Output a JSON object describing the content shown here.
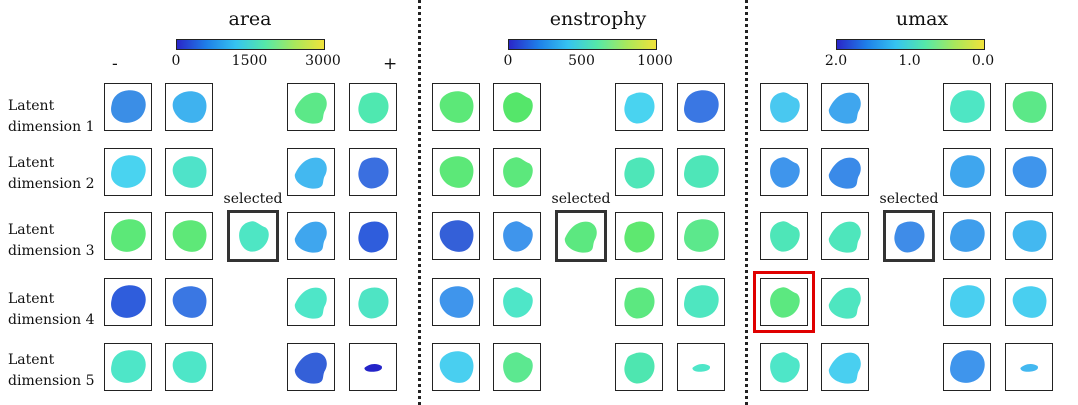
{
  "rows": [
    "Latent\ndimension 1",
    "Latent\ndimension 2",
    "Latent\ndimension 3",
    "Latent\ndimension 4",
    "Latent\ndimension 5"
  ],
  "minus": "-",
  "plus": "+",
  "selected_label": "selected",
  "panels": [
    {
      "title": "area",
      "ticks": [
        "0",
        "1500",
        "3000"
      ],
      "gradient": [
        "#2a26c9",
        "#1e7fe8",
        "#35c3f0",
        "#55e8a9",
        "#a8e85c",
        "#f0e23a"
      ],
      "blobs": [
        [
          "#3b8ee6",
          "#3fb2ef",
          null,
          "#5ce888",
          "#4fe8b0"
        ],
        [
          "#49d3f0",
          "#4fe3c9",
          null,
          "#43b8f0",
          "#3a6fe0"
        ],
        [
          "#5ce878",
          "#5ee878",
          "#4ee6c4",
          "#3fa6ee",
          "#2f5ddc"
        ],
        [
          "#2f5ddc",
          "#3a77e3",
          null,
          "#4ee6c8",
          "#4ee4c4"
        ],
        [
          "#4ee6c8",
          "#4ee6c8",
          null,
          "#3460d8",
          "#2424c8"
        ]
      ]
    },
    {
      "title": "enstrophy",
      "ticks": [
        "0",
        "500",
        "1000"
      ],
      "gradient": [
        "#2a26c9",
        "#1e7fe8",
        "#35c3f0",
        "#55e8a9",
        "#a8e85c",
        "#f0e23a"
      ],
      "blobs": [
        [
          "#5ce878",
          "#55e66a",
          null,
          "#49d3f0",
          "#3a77e3"
        ],
        [
          "#5ce878",
          "#5ce87c",
          null,
          "#4ee6b8",
          "#4ee6b8"
        ],
        [
          "#3460d8",
          "#3f95ec",
          "#5ce880",
          "#5ee870",
          "#5ce88c"
        ],
        [
          "#3f95ec",
          "#4ee6c8",
          null,
          "#5ce880",
          "#4ee6c0"
        ],
        [
          "#49cff0",
          "#5ce890",
          null,
          "#4ee6b0",
          "#4ee6c8"
        ]
      ]
    },
    {
      "title": "umax",
      "ticks": [
        "2.0",
        "1.0",
        "0.0"
      ],
      "gradient": [
        "#2a26c9",
        "#1e7fe8",
        "#35c3f0",
        "#55e8a9",
        "#a8e85c",
        "#f0e23a"
      ],
      "blobs": [
        [
          "#49c8f0",
          "#3fa6ee",
          null,
          "#4ee6c4",
          "#5ce888"
        ],
        [
          "#3f95ec",
          "#3a8ae8",
          null,
          "#3fa6ee",
          "#3f95ec"
        ],
        [
          "#4ee6b8",
          "#4ee6bc",
          "#3f8ce8",
          "#3f9eec",
          "#43b8f0"
        ],
        [
          "#5ce880",
          "#4ee6c0",
          null,
          "#49cff0",
          "#49cff0"
        ],
        [
          "#4ee6c8",
          "#49cff0",
          null,
          "#3f95ec",
          "#43b8f0"
        ]
      ]
    }
  ]
}
